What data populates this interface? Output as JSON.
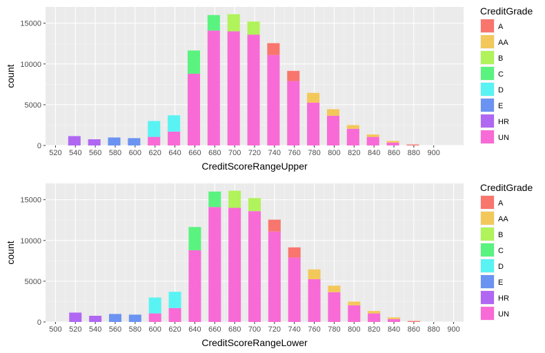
{
  "colors": {
    "A": "#f8766d",
    "AA": "#f3c85a",
    "B": "#b0f35a",
    "C": "#5af37f",
    "D": "#5af3f3",
    "E": "#6b93f1",
    "HR": "#b068f3",
    "UN": "#f86bd6"
  },
  "chart_data": [
    {
      "type": "bar",
      "stacked": true,
      "xlabel": "CreditScoreRangeUpper",
      "ylabel": "count",
      "legend_title": "CreditGrade",
      "legend_position": "right",
      "grid": true,
      "ylim": [
        0,
        17000
      ],
      "yticks": [
        0,
        5000,
        10000,
        15000
      ],
      "xlim": [
        510,
        930
      ],
      "xticks": [
        520,
        540,
        560,
        580,
        600,
        620,
        640,
        660,
        680,
        700,
        720,
        740,
        760,
        780,
        800,
        820,
        840,
        860,
        880,
        900
      ],
      "categories": [
        539,
        559,
        579,
        599,
        619,
        639,
        659,
        679,
        699,
        719,
        739,
        759,
        779,
        799,
        819,
        839,
        859,
        879
      ],
      "series": [
        {
          "name": "UN",
          "values": [
            0,
            0,
            0,
            0,
            1050,
            1700,
            8800,
            14100,
            14000,
            13600,
            11100,
            7900,
            5250,
            3650,
            2050,
            1050,
            360,
            0
          ]
        },
        {
          "name": "HR",
          "values": [
            1150,
            760,
            0,
            0,
            0,
            0,
            0,
            0,
            0,
            0,
            0,
            0,
            0,
            0,
            0,
            0,
            0,
            0
          ]
        },
        {
          "name": "E",
          "values": [
            0,
            0,
            980,
            900,
            0,
            0,
            0,
            0,
            0,
            0,
            0,
            0,
            0,
            0,
            0,
            0,
            0,
            0
          ]
        },
        {
          "name": "D",
          "values": [
            0,
            0,
            0,
            0,
            1950,
            2000,
            0,
            0,
            0,
            0,
            0,
            0,
            0,
            0,
            0,
            0,
            0,
            0
          ]
        },
        {
          "name": "C",
          "values": [
            0,
            0,
            0,
            0,
            0,
            0,
            2850,
            1900,
            0,
            0,
            0,
            0,
            0,
            0,
            0,
            0,
            0,
            0
          ]
        },
        {
          "name": "B",
          "values": [
            0,
            0,
            0,
            0,
            0,
            0,
            0,
            0,
            2100,
            1600,
            0,
            0,
            0,
            0,
            0,
            0,
            0,
            0
          ]
        },
        {
          "name": "AA",
          "values": [
            0,
            0,
            0,
            0,
            0,
            0,
            0,
            0,
            0,
            0,
            0,
            0,
            1200,
            800,
            450,
            300,
            200,
            0
          ]
        },
        {
          "name": "A",
          "values": [
            0,
            0,
            0,
            0,
            0,
            0,
            0,
            0,
            0,
            0,
            1450,
            1250,
            0,
            0,
            0,
            0,
            0,
            120
          ]
        }
      ]
    },
    {
      "type": "bar",
      "stacked": true,
      "xlabel": "CreditScoreRangeLower",
      "ylabel": "count",
      "legend_title": "CreditGrade",
      "legend_position": "right",
      "grid": true,
      "ylim": [
        0,
        17000
      ],
      "yticks": [
        0,
        5000,
        10000,
        15000
      ],
      "xlim": [
        490,
        910
      ],
      "xticks": [
        500,
        520,
        540,
        560,
        580,
        600,
        620,
        640,
        660,
        680,
        700,
        720,
        740,
        760,
        780,
        800,
        820,
        840,
        860,
        880,
        900
      ],
      "categories": [
        520,
        540,
        560,
        580,
        600,
        620,
        640,
        660,
        680,
        700,
        720,
        740,
        760,
        780,
        800,
        820,
        840,
        860
      ],
      "series": [
        {
          "name": "UN",
          "values": [
            0,
            0,
            0,
            0,
            1050,
            1700,
            8800,
            14100,
            14000,
            13600,
            11100,
            7900,
            5250,
            3650,
            2050,
            1050,
            360,
            0
          ]
        },
        {
          "name": "HR",
          "values": [
            1150,
            760,
            0,
            0,
            0,
            0,
            0,
            0,
            0,
            0,
            0,
            0,
            0,
            0,
            0,
            0,
            0,
            0
          ]
        },
        {
          "name": "E",
          "values": [
            0,
            0,
            980,
            900,
            0,
            0,
            0,
            0,
            0,
            0,
            0,
            0,
            0,
            0,
            0,
            0,
            0,
            0
          ]
        },
        {
          "name": "D",
          "values": [
            0,
            0,
            0,
            0,
            1950,
            2000,
            0,
            0,
            0,
            0,
            0,
            0,
            0,
            0,
            0,
            0,
            0,
            0
          ]
        },
        {
          "name": "C",
          "values": [
            0,
            0,
            0,
            0,
            0,
            0,
            2850,
            1900,
            0,
            0,
            0,
            0,
            0,
            0,
            0,
            0,
            0,
            0
          ]
        },
        {
          "name": "B",
          "values": [
            0,
            0,
            0,
            0,
            0,
            0,
            0,
            0,
            2100,
            1600,
            0,
            0,
            0,
            0,
            0,
            0,
            0,
            0
          ]
        },
        {
          "name": "AA",
          "values": [
            0,
            0,
            0,
            0,
            0,
            0,
            0,
            0,
            0,
            0,
            0,
            0,
            1200,
            800,
            450,
            300,
            200,
            0
          ]
        },
        {
          "name": "A",
          "values": [
            0,
            0,
            0,
            0,
            0,
            0,
            0,
            0,
            0,
            0,
            1450,
            1250,
            0,
            0,
            0,
            0,
            0,
            120
          ]
        }
      ]
    }
  ],
  "legend": [
    "A",
    "AA",
    "B",
    "C",
    "D",
    "E",
    "HR",
    "UN"
  ]
}
